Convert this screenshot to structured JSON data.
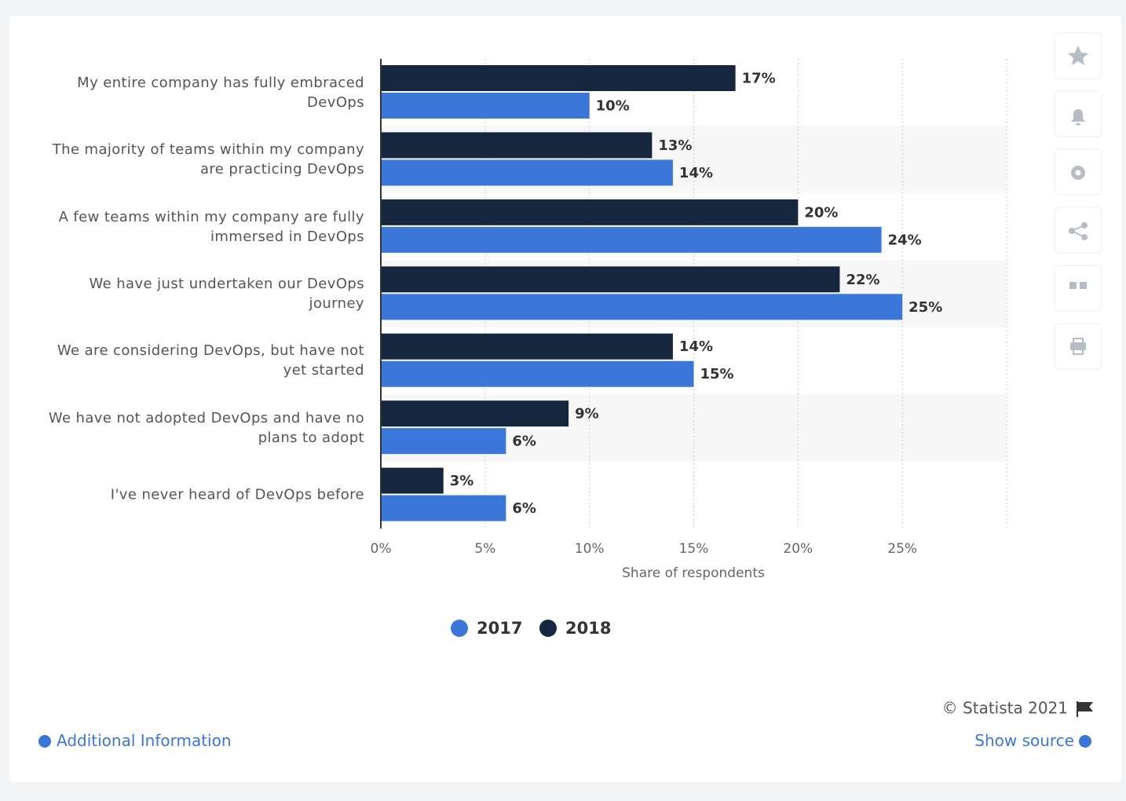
{
  "chart_data": {
    "type": "bar",
    "orientation": "horizontal",
    "categories": [
      "My entire company has fully embraced DevOps",
      "The majority of teams within my company are practicing DevOps",
      "A few teams within my company are fully immersed in DevOps",
      "We have just undertaken our DevOps journey",
      "We are considering DevOps, but have not yet started",
      "We have not adopted DevOps and have no plans to adopt",
      "I've never heard of DevOps before"
    ],
    "series": [
      {
        "name": "2017",
        "color": "#3b77d9",
        "values": [
          10,
          14,
          24,
          25,
          15,
          6,
          6
        ],
        "value_labels": [
          "10%",
          "14%",
          "24%",
          "25%",
          "15%",
          "6%",
          "6%"
        ]
      },
      {
        "name": "2018",
        "color": "#17263f",
        "values": [
          17,
          13,
          20,
          22,
          14,
          9,
          3
        ],
        "value_labels": [
          "17%",
          "13%",
          "20%",
          "22%",
          "14%",
          "9%",
          "3%"
        ]
      }
    ],
    "x_label": "Share of respondents",
    "xlim": [
      0,
      30
    ],
    "xticks": [
      {
        "value": 0,
        "label": "0%"
      },
      {
        "value": 5,
        "label": "5%"
      },
      {
        "value": 10,
        "label": "10%"
      },
      {
        "value": 15,
        "label": "15%"
      },
      {
        "value": 20,
        "label": "20%"
      },
      {
        "value": 25,
        "label": "25%"
      }
    ],
    "grid": true,
    "legend": "bottom"
  },
  "footer": {
    "copyright": "© Statista 2021",
    "additional_info": "Additional Information",
    "show_source": "Show source"
  }
}
